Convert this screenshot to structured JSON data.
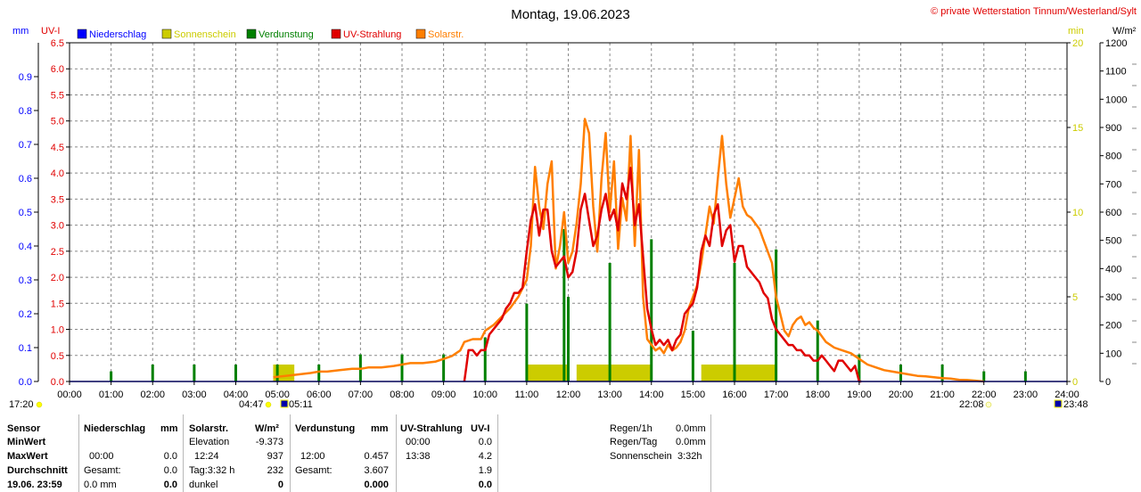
{
  "header": {
    "title": "Montag, 19.06.2023",
    "copyright": "© private Wetterstation Tinnum/Westerland/Sylt",
    "unit_mm": "mm",
    "unit_uvi": "UV-I",
    "unit_min": "min",
    "unit_wm2": "W/m²"
  },
  "legend": [
    {
      "label": "Niederschlag",
      "color": "#0000ff"
    },
    {
      "label": "Sonnenschein",
      "color": "#cccc00"
    },
    {
      "label": "Verdunstung",
      "color": "#008000"
    },
    {
      "label": "UV-Strahlung",
      "color": "#e00000"
    },
    {
      "label": "Solarstr.",
      "color": "#ff7f00"
    }
  ],
  "chart_data": {
    "type": "line",
    "x_ticks": [
      "00:00",
      "01:00",
      "02:00",
      "03:00",
      "04:00",
      "05:00",
      "06:00",
      "07:00",
      "08:00",
      "09:00",
      "10:00",
      "11:00",
      "12:00",
      "13:00",
      "14:00",
      "15:00",
      "16:00",
      "17:00",
      "18:00",
      "19:00",
      "20:00",
      "21:00",
      "22:00",
      "23:00",
      "24:00"
    ],
    "xlim": [
      0,
      24
    ],
    "axes": {
      "precip_mm": {
        "ticks": [
          "0.0",
          "0.1",
          "0.2",
          "0.3",
          "0.4",
          "0.5",
          "0.6",
          "0.7",
          "0.8",
          "0.9"
        ],
        "ylim": [
          0,
          1.0
        ]
      },
      "uv_index": {
        "ticks": [
          "0.0",
          "0.5",
          "1.0",
          "1.5",
          "2.0",
          "2.5",
          "3.0",
          "3.5",
          "4.0",
          "4.5",
          "5.0",
          "5.5",
          "6.0",
          "6.5"
        ],
        "ylim": [
          0,
          6.5
        ]
      },
      "sunshine_min": {
        "ticks": [
          "0",
          "5",
          "10",
          "15",
          "20"
        ],
        "ylim": [
          0,
          20
        ]
      },
      "solar_wm2": {
        "ticks": [
          "0",
          "100",
          "200",
          "300",
          "400",
          "500",
          "600",
          "700",
          "800",
          "900",
          "1000",
          "1100",
          "1200"
        ],
        "ylim": [
          0,
          1200
        ]
      }
    },
    "series": [
      {
        "name": "Niederschlag",
        "color": "#0000ff",
        "axis": "precip_mm",
        "values": []
      },
      {
        "name": "Sonnenschein",
        "color": "#cccc00",
        "axis": "sunshine_min",
        "kind": "bar",
        "x": [
          4.95,
          5.05,
          5.15,
          5.25,
          5.35,
          11.05,
          11.15,
          11.25,
          11.35,
          11.45,
          11.55,
          11.65,
          11.75,
          11.85,
          11.95,
          12.25,
          12.35,
          12.45,
          12.55,
          12.65,
          12.75,
          12.85,
          12.95,
          13.05,
          13.15,
          13.25,
          13.35,
          13.45,
          13.55,
          13.65,
          13.75,
          13.85,
          13.95,
          15.25,
          15.35,
          15.45,
          15.55,
          15.65,
          15.75,
          15.85,
          15.95,
          16.05,
          16.15,
          16.25,
          16.35,
          16.45,
          16.55,
          16.65,
          16.75,
          16.85,
          16.95
        ],
        "values": [
          1,
          1,
          1,
          1,
          1,
          1,
          1,
          1,
          1,
          1,
          1,
          1,
          1,
          1,
          1,
          1,
          1,
          1,
          1,
          1,
          1,
          1,
          1,
          1,
          1,
          1,
          1,
          1,
          1,
          1,
          1,
          1,
          1,
          1,
          1,
          1,
          1,
          1,
          1,
          1,
          1,
          1,
          1,
          1,
          1,
          1,
          1,
          1,
          1,
          1,
          1
        ]
      },
      {
        "name": "Verdunstung",
        "color": "#008000",
        "axis": "precip_mm",
        "kind": "bar",
        "x": [
          1,
          2,
          3,
          4,
          5,
          6,
          7,
          8,
          9,
          10,
          11,
          12,
          13,
          14,
          15,
          16,
          17,
          18,
          19,
          20,
          21,
          22,
          23,
          11.9
        ],
        "values": [
          0.03,
          0.05,
          0.05,
          0.05,
          0.05,
          0.05,
          0.08,
          0.08,
          0.08,
          0.13,
          0.23,
          0.25,
          0.35,
          0.42,
          0.15,
          0.35,
          0.39,
          0.18,
          0.08,
          0.05,
          0.05,
          0.03,
          0.03,
          0.45
        ]
      },
      {
        "name": "UV-Strahlung",
        "color": "#e00000",
        "axis": "uv_index",
        "x": [
          9.5,
          9.55,
          9.6,
          9.7,
          9.8,
          9.9,
          10.0,
          10.1,
          10.2,
          10.3,
          10.4,
          10.5,
          10.6,
          10.7,
          10.8,
          10.9,
          11.0,
          11.05,
          11.1,
          11.2,
          11.3,
          11.4,
          11.5,
          11.6,
          11.7,
          11.8,
          11.9,
          12.0,
          12.1,
          12.2,
          12.3,
          12.4,
          12.5,
          12.6,
          12.7,
          12.8,
          12.9,
          13.0,
          13.1,
          13.2,
          13.3,
          13.4,
          13.5,
          13.6,
          13.7,
          13.8,
          13.9,
          14.0,
          14.1,
          14.2,
          14.3,
          14.4,
          14.5,
          14.6,
          14.7,
          14.8,
          14.9,
          15.0,
          15.1,
          15.2,
          15.3,
          15.4,
          15.5,
          15.6,
          15.7,
          15.8,
          15.9,
          16.0,
          16.1,
          16.2,
          16.3,
          16.4,
          16.5,
          16.6,
          16.7,
          16.8,
          16.9,
          17.0,
          17.1,
          17.2,
          17.3,
          17.4,
          17.5,
          17.6,
          17.7,
          17.8,
          17.9,
          18.0,
          18.1,
          18.2,
          18.3,
          18.4,
          18.5,
          18.6,
          18.7,
          18.8,
          18.9,
          19.0,
          19.05
        ],
        "values": [
          0,
          0.3,
          0.6,
          0.6,
          0.5,
          0.6,
          0.6,
          0.9,
          1.0,
          1.1,
          1.2,
          1.4,
          1.5,
          1.7,
          1.7,
          1.8,
          2.5,
          2.8,
          3.1,
          3.4,
          2.8,
          3.3,
          3.3,
          2.5,
          2.2,
          2.3,
          2.4,
          2.0,
          2.1,
          2.5,
          3.3,
          3.6,
          3.1,
          2.6,
          2.8,
          3.3,
          3.6,
          3.1,
          3.3,
          2.9,
          3.8,
          3.5,
          4.1,
          3.0,
          3.4,
          2.4,
          1.4,
          1.0,
          0.7,
          0.8,
          0.7,
          0.8,
          0.6,
          0.8,
          0.9,
          1.3,
          1.4,
          1.5,
          1.8,
          2.5,
          2.8,
          2.6,
          3.2,
          3.4,
          2.6,
          2.9,
          3.0,
          2.3,
          2.6,
          2.6,
          2.2,
          2.1,
          2.0,
          1.9,
          1.7,
          1.6,
          1.2,
          1.0,
          0.9,
          0.8,
          0.7,
          0.7,
          0.6,
          0.6,
          0.5,
          0.5,
          0.4,
          0.4,
          0.5,
          0.4,
          0.3,
          0.2,
          0.4,
          0.4,
          0.3,
          0.2,
          0.3,
          0,
          0
        ]
      },
      {
        "name": "Solarstr.",
        "color": "#ff7f00",
        "axis": "solar_wm2",
        "x": [
          4.9,
          5.2,
          5.5,
          5.8,
          6.0,
          6.2,
          6.5,
          6.8,
          7.0,
          7.2,
          7.5,
          7.8,
          8.0,
          8.2,
          8.5,
          8.8,
          9.0,
          9.2,
          9.4,
          9.5,
          9.7,
          9.9,
          10.0,
          10.2,
          10.4,
          10.6,
          10.8,
          11.0,
          11.1,
          11.2,
          11.3,
          11.4,
          11.5,
          11.6,
          11.7,
          11.8,
          11.9,
          12.0,
          12.1,
          12.2,
          12.3,
          12.4,
          12.5,
          12.6,
          12.7,
          12.8,
          12.9,
          13.0,
          13.1,
          13.2,
          13.3,
          13.4,
          13.5,
          13.6,
          13.7,
          13.8,
          13.9,
          14.0,
          14.1,
          14.2,
          14.3,
          14.4,
          14.5,
          14.6,
          14.7,
          14.8,
          14.9,
          15.0,
          15.1,
          15.2,
          15.3,
          15.4,
          15.5,
          15.6,
          15.7,
          15.8,
          15.9,
          16.0,
          16.1,
          16.2,
          16.3,
          16.4,
          16.5,
          16.6,
          16.7,
          16.8,
          16.9,
          17.0,
          17.1,
          17.2,
          17.3,
          17.4,
          17.5,
          17.6,
          17.7,
          17.8,
          17.9,
          18.0,
          18.2,
          18.4,
          18.6,
          18.8,
          19.0,
          19.2,
          19.4,
          19.6,
          19.8,
          20.0,
          20.2,
          20.4,
          20.6,
          20.8,
          21.0,
          21.2,
          21.4,
          21.6,
          21.8,
          22.0
        ],
        "values": [
          15,
          20,
          25,
          30,
          35,
          35,
          40,
          45,
          45,
          50,
          50,
          55,
          60,
          65,
          65,
          70,
          80,
          90,
          110,
          140,
          150,
          150,
          180,
          200,
          230,
          260,
          300,
          360,
          480,
          760,
          620,
          540,
          700,
          780,
          400,
          480,
          600,
          420,
          460,
          560,
          700,
          930,
          880,
          620,
          460,
          720,
          880,
          600,
          780,
          470,
          650,
          570,
          870,
          480,
          820,
          300,
          150,
          130,
          110,
          120,
          100,
          130,
          110,
          120,
          140,
          180,
          260,
          300,
          340,
          420,
          520,
          620,
          560,
          720,
          870,
          700,
          580,
          650,
          720,
          620,
          590,
          580,
          560,
          540,
          500,
          460,
          420,
          300,
          240,
          180,
          160,
          200,
          220,
          230,
          200,
          210,
          190,
          180,
          140,
          120,
          110,
          100,
          80,
          60,
          50,
          40,
          35,
          30,
          25,
          20,
          18,
          15,
          12,
          10,
          6,
          5,
          3,
          0
        ]
      }
    ]
  },
  "time_markers": {
    "left_time": "17:20",
    "sunrise": "04:47",
    "civil_dawn": "05:11",
    "sunset": "22:08",
    "civil_dusk": "23:48"
  },
  "stats": {
    "labels": {
      "sensor": "Sensor",
      "min": "MinWert",
      "max": "MaxWert",
      "avg": "Durchschnitt",
      "date": "19.06. 23:59"
    },
    "niederschlag": {
      "title": "Niederschlag",
      "unit": "mm",
      "max_time": "00:00",
      "max_val": "0.0",
      "avg_label": "Gesamt:",
      "avg_val": "0.0",
      "last_val": "0.0 mm",
      "last_sum": "0.0"
    },
    "solar": {
      "title": "Solarstr.",
      "unit": "W/m²",
      "elev_label": "Elevation",
      "elev_val": "-9.373",
      "max_time": "12:24",
      "max_val": "937",
      "tag_label": "Tag:3:32 h",
      "tag_val": "232",
      "dark_label": "dunkel",
      "dark_val": "0"
    },
    "verdunstung": {
      "title": "Verdunstung",
      "unit": "mm",
      "max_time": "12:00",
      "max_val": "0.457",
      "sum_label": "Gesamt:",
      "sum_val": "3.607",
      "last_val": "0.000"
    },
    "uv": {
      "title": "UV-Strahlung",
      "unit": "UV-I",
      "min_time": "00:00",
      "min_val": "0.0",
      "max_time": "13:38",
      "max_val": "4.2",
      "avg_val": "1.9",
      "last_val": "0.0"
    },
    "summary": {
      "regen1h_label": "Regen/1h",
      "regen1h_val": "0.0mm",
      "regentag_label": "Regen/Tag",
      "regentag_val": "0.0mm",
      "sonne_label": "Sonnenschein",
      "sonne_val": "3:32h"
    }
  }
}
